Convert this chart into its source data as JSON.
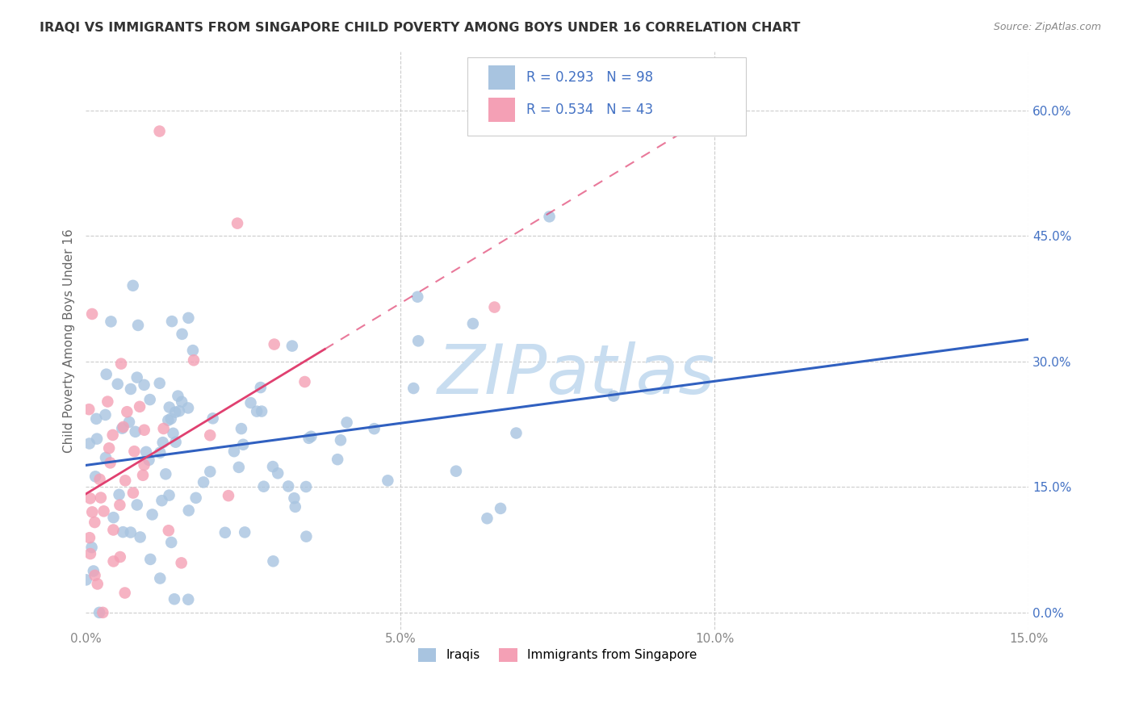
{
  "title": "IRAQI VS IMMIGRANTS FROM SINGAPORE CHILD POVERTY AMONG BOYS UNDER 16 CORRELATION CHART",
  "source": "Source: ZipAtlas.com",
  "ylabel_label": "Child Poverty Among Boys Under 16",
  "xlim": [
    0.0,
    0.15
  ],
  "ylim": [
    -0.02,
    0.67
  ],
  "x_ticks": [
    0.0,
    0.05,
    0.1,
    0.15
  ],
  "y_ticks": [
    0.0,
    0.15,
    0.3,
    0.45,
    0.6
  ],
  "legend_label1": "Iraqis",
  "legend_label2": "Immigrants from Singapore",
  "r1": 0.293,
  "n1": 98,
  "r2": 0.534,
  "n2": 43,
  "color_iraqis": "#a8c4e0",
  "color_singapore": "#f4a0b5",
  "trendline_color_iraqis": "#3060c0",
  "trendline_color_singapore": "#e04070",
  "watermark_text": "ZIPatlas",
  "watermark_color": "#c8ddf0",
  "background_color": "#ffffff",
  "grid_color": "#cccccc",
  "title_color": "#333333",
  "right_axis_color": "#4472c4",
  "source_color": "#888888",
  "ylabel_color": "#666666"
}
